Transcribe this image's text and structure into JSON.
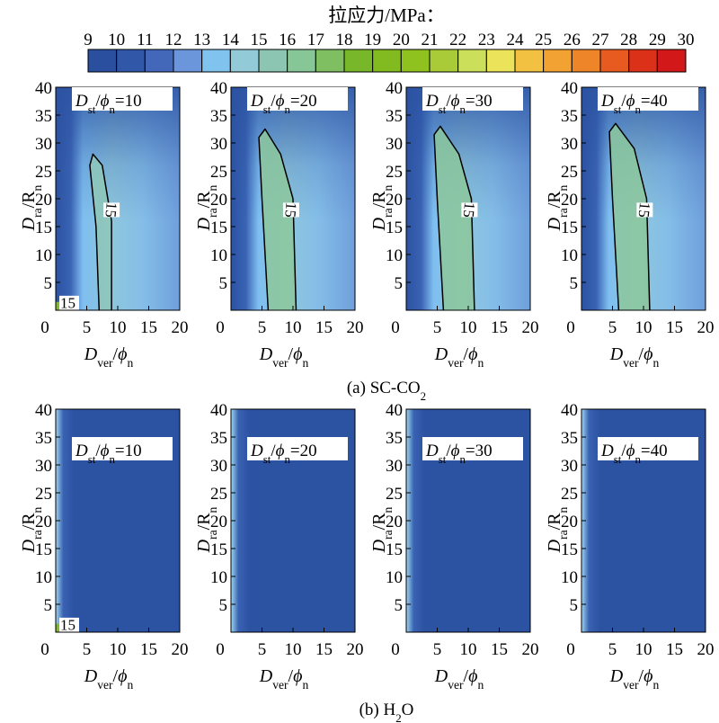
{
  "chart_data": {
    "type": "heatmap",
    "colorbar": {
      "title": "拉应力/MPa：",
      "ticks": [
        "9",
        "10",
        "11",
        "12",
        "13",
        "14",
        "15",
        "16",
        "17",
        "18",
        "19",
        "20",
        "21",
        "22",
        "23",
        "24",
        "25",
        "26",
        "27",
        "28",
        "29",
        "30"
      ],
      "colors": [
        "#2a4f9e",
        "#3057a8",
        "#4368ba",
        "#6b96dc",
        "#80c3ef",
        "#93cad8",
        "#8cc6b3",
        "#86c697",
        "#7fbf62",
        "#79b72a",
        "#82bb1f",
        "#8fc11f",
        "#a8cb37",
        "#cbdf5a",
        "#ebe45a",
        "#f2c142",
        "#f2a232",
        "#ee8529",
        "#e75b21",
        "#dc3119",
        "#d21818"
      ]
    },
    "xlim": [
      0,
      20
    ],
    "ylim": [
      0,
      40
    ],
    "xticks": [
      "0",
      "5",
      "10",
      "15",
      "20"
    ],
    "yticks": [
      "5",
      "10",
      "15",
      "20",
      "25",
      "30",
      "35",
      "40"
    ],
    "xlabel": {
      "a": "D",
      "b": "ver",
      "c": "/",
      "d": "ϕ",
      "e": "n"
    },
    "ylabel": {
      "a": "D",
      "b": "ra",
      "c": "/R",
      "d": "n"
    },
    "rows": [
      {
        "caption": {
          "a": "(a) SC-CO",
          "b": "2"
        },
        "panels": [
          {
            "label": {
              "a": "D",
              "b": "st",
              "c": "/",
              "d": "ϕ",
              "e": "n",
              "f": "=10"
            },
            "contour_label": "15",
            "corner_label": "15",
            "contour_15": [
              [
                7,
                0
              ],
              [
                6.5,
                15
              ],
              [
                5.5,
                26
              ],
              [
                6,
                28
              ],
              [
                7.5,
                26
              ],
              [
                9,
                16
              ],
              [
                9,
                0
              ]
            ]
          },
          {
            "label": {
              "a": "D",
              "b": "st",
              "c": "/",
              "d": "ϕ",
              "e": "n",
              "f": "=20"
            },
            "contour_label": "15",
            "contour_15": [
              [
                6,
                0
              ],
              [
                5,
                20
              ],
              [
                4.5,
                31
              ],
              [
                5.5,
                32.5
              ],
              [
                8,
                28
              ],
              [
                10,
                20
              ],
              [
                10.5,
                0
              ]
            ]
          },
          {
            "label": {
              "a": "D",
              "b": "st",
              "c": "/",
              "d": "ϕ",
              "e": "n",
              "f": "=30"
            },
            "contour_label": "15",
            "contour_15": [
              [
                6,
                0
              ],
              [
                5,
                20
              ],
              [
                4.5,
                31.5
              ],
              [
                5.5,
                33
              ],
              [
                8.5,
                28
              ],
              [
                10.5,
                20
              ],
              [
                11,
                0
              ]
            ]
          },
          {
            "label": {
              "a": "D",
              "b": "st",
              "c": "/",
              "d": "ϕ",
              "e": "n",
              "f": "=40"
            },
            "contour_label": "15",
            "contour_15": [
              [
                6,
                0
              ],
              [
                5,
                20
              ],
              [
                4.5,
                32
              ],
              [
                5.5,
                33.5
              ],
              [
                8.5,
                29
              ],
              [
                10.5,
                20
              ],
              [
                11,
                0
              ]
            ]
          }
        ]
      },
      {
        "caption": {
          "a": "(b) H",
          "b": "2",
          "c": "O"
        },
        "panels": [
          {
            "label": {
              "a": "D",
              "b": "st",
              "c": "/",
              "d": "ϕ",
              "e": "n",
              "f": "=10"
            },
            "corner_label": "15"
          },
          {
            "label": {
              "a": "D",
              "b": "st",
              "c": "/",
              "d": "ϕ",
              "e": "n",
              "f": "=20"
            }
          },
          {
            "label": {
              "a": "D",
              "b": "st",
              "c": "/",
              "d": "ϕ",
              "e": "n",
              "f": "=30"
            }
          },
          {
            "label": {
              "a": "D",
              "b": "st",
              "c": "/",
              "d": "ϕ",
              "e": "n",
              "f": "=40"
            }
          }
        ]
      }
    ]
  }
}
